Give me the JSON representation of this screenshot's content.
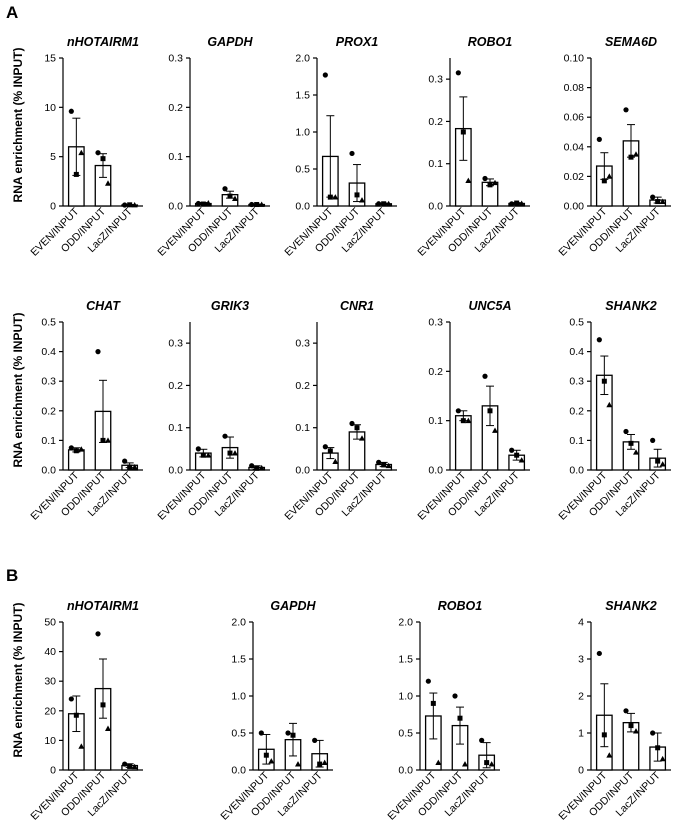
{
  "panels": [
    {
      "letter": "A"
    },
    {
      "letter": "B"
    }
  ],
  "y_axis_label": "RNA enrichment (% INPUT)",
  "categories": [
    "EVEN/INPUT",
    "ODD/INPUT",
    "LacZ/INPUT"
  ],
  "chart_data": [
    {
      "type": "bar",
      "panel": "A",
      "title": "nHOTAIRM1",
      "categories": [
        "EVEN/INPUT",
        "ODD/INPUT",
        "LacZ/INPUT"
      ],
      "values": [
        6.0,
        4.1,
        0.1
      ],
      "errors": [
        2.9,
        1.2,
        0.05
      ],
      "ylim": [
        0,
        15
      ],
      "yticks": [
        0,
        5,
        10,
        15
      ],
      "tick_labels": [
        "0",
        "5",
        "10",
        "15"
      ],
      "points": [
        [
          9.6,
          3.2,
          5.4
        ],
        [
          5.4,
          4.8,
          2.3
        ],
        [
          0.1,
          0.12,
          0.1
        ]
      ]
    },
    {
      "type": "bar",
      "panel": "A",
      "title": "GAPDH",
      "categories": [
        "EVEN/INPUT",
        "ODD/INPUT",
        "LacZ/INPUT"
      ],
      "values": [
        0.005,
        0.023,
        0.003
      ],
      "errors": [
        0.002,
        0.007,
        0.001
      ],
      "ylim": [
        0,
        0.3
      ],
      "yticks": [
        0,
        0.1,
        0.2,
        0.3
      ],
      "tick_labels": [
        "0.0",
        "0.1",
        "0.2",
        "0.3"
      ],
      "points": [
        [
          0.005,
          0.004,
          0.006
        ],
        [
          0.035,
          0.02,
          0.015
        ],
        [
          0.003,
          0.003,
          0.003
        ]
      ]
    },
    {
      "type": "bar",
      "panel": "A",
      "title": "PROX1",
      "categories": [
        "EVEN/INPUT",
        "ODD/INPUT",
        "LacZ/INPUT"
      ],
      "values": [
        0.67,
        0.31,
        0.03
      ],
      "errors": [
        0.55,
        0.25,
        0.01
      ],
      "ylim": [
        0,
        2.0
      ],
      "yticks": [
        0,
        0.5,
        1.0,
        1.5,
        2.0
      ],
      "tick_labels": [
        "0.0",
        "0.5",
        "1.0",
        "1.5",
        "2.0"
      ],
      "points": [
        [
          1.77,
          0.12,
          0.12
        ],
        [
          0.71,
          0.15,
          0.08
        ],
        [
          0.03,
          0.03,
          0.03
        ]
      ]
    },
    {
      "type": "bar",
      "panel": "A",
      "title": "ROBO1",
      "categories": [
        "EVEN/INPUT",
        "ODD/INPUT",
        "LacZ/INPUT"
      ],
      "values": [
        0.183,
        0.056,
        0.006
      ],
      "errors": [
        0.075,
        0.008,
        0.002
      ],
      "ylim": [
        0,
        0.35
      ],
      "yticks": [
        0,
        0.1,
        0.2,
        0.3
      ],
      "tick_labels": [
        "0.0",
        "0.1",
        "0.2",
        "0.3"
      ],
      "points": [
        [
          0.315,
          0.175,
          0.06
        ],
        [
          0.065,
          0.05,
          0.055
        ],
        [
          0.005,
          0.007,
          0.006
        ]
      ]
    },
    {
      "type": "bar",
      "panel": "A",
      "title": "SEMA6D",
      "categories": [
        "EVEN/INPUT",
        "ODD/INPUT",
        "LacZ/INPUT"
      ],
      "values": [
        0.027,
        0.044,
        0.004
      ],
      "errors": [
        0.009,
        0.011,
        0.002
      ],
      "ylim": [
        0,
        0.1
      ],
      "yticks": [
        0,
        0.02,
        0.04,
        0.06,
        0.08,
        0.1
      ],
      "tick_labels": [
        "0.00",
        "0.02",
        "0.04",
        "0.06",
        "0.08",
        "0.10"
      ],
      "points": [
        [
          0.045,
          0.017,
          0.02
        ],
        [
          0.065,
          0.033,
          0.035
        ],
        [
          0.006,
          0.003,
          0.003
        ]
      ]
    },
    {
      "type": "bar",
      "panel": "A",
      "title": "CHAT",
      "categories": [
        "EVEN/INPUT",
        "ODD/INPUT",
        "LacZ/INPUT"
      ],
      "values": [
        0.068,
        0.198,
        0.016
      ],
      "errors": [
        0.007,
        0.105,
        0.008
      ],
      "ylim": [
        0,
        0.5
      ],
      "yticks": [
        0,
        0.1,
        0.2,
        0.3,
        0.4,
        0.5
      ],
      "tick_labels": [
        "0.0",
        "0.1",
        "0.2",
        "0.3",
        "0.4",
        "0.5"
      ],
      "points": [
        [
          0.075,
          0.065,
          0.07
        ],
        [
          0.4,
          0.1,
          0.1
        ],
        [
          0.03,
          0.01,
          0.01
        ]
      ]
    },
    {
      "type": "bar",
      "panel": "A",
      "title": "GRIK3",
      "categories": [
        "EVEN/INPUT",
        "ODD/INPUT",
        "LacZ/INPUT"
      ],
      "values": [
        0.04,
        0.053,
        0.006
      ],
      "errors": [
        0.009,
        0.025,
        0.004
      ],
      "ylim": [
        0,
        0.35
      ],
      "yticks": [
        0,
        0.1,
        0.2,
        0.3
      ],
      "tick_labels": [
        "0.0",
        "0.1",
        "0.2",
        "0.3"
      ],
      "points": [
        [
          0.05,
          0.035,
          0.035
        ],
        [
          0.08,
          0.04,
          0.04
        ],
        [
          0.01,
          0.004,
          0.005
        ]
      ]
    },
    {
      "type": "bar",
      "panel": "A",
      "title": "CNR1",
      "categories": [
        "EVEN/INPUT",
        "ODD/INPUT",
        "LacZ/INPUT"
      ],
      "values": [
        0.04,
        0.09,
        0.013
      ],
      "errors": [
        0.013,
        0.017,
        0.005
      ],
      "ylim": [
        0,
        0.35
      ],
      "yticks": [
        0,
        0.1,
        0.2,
        0.3
      ],
      "tick_labels": [
        "0.0",
        "0.1",
        "0.2",
        "0.3"
      ],
      "points": [
        [
          0.055,
          0.045,
          0.02
        ],
        [
          0.11,
          0.1,
          0.075
        ],
        [
          0.018,
          0.012,
          0.01
        ]
      ]
    },
    {
      "type": "bar",
      "panel": "A",
      "title": "UNC5A",
      "categories": [
        "EVEN/INPUT",
        "ODD/INPUT",
        "LacZ/INPUT"
      ],
      "values": [
        0.11,
        0.13,
        0.03
      ],
      "errors": [
        0.01,
        0.04,
        0.01
      ],
      "ylim": [
        0,
        0.3
      ],
      "yticks": [
        0,
        0.1,
        0.2,
        0.3
      ],
      "tick_labels": [
        "0.0",
        "0.1",
        "0.2",
        "0.3"
      ],
      "points": [
        [
          0.12,
          0.1,
          0.1
        ],
        [
          0.19,
          0.12,
          0.08
        ],
        [
          0.04,
          0.03,
          0.02
        ]
      ]
    },
    {
      "type": "bar",
      "panel": "A",
      "title": "SHANK2",
      "categories": [
        "EVEN/INPUT",
        "ODD/INPUT",
        "LacZ/INPUT"
      ],
      "values": [
        0.32,
        0.095,
        0.04
      ],
      "errors": [
        0.065,
        0.025,
        0.03
      ],
      "ylim": [
        0,
        0.5
      ],
      "yticks": [
        0,
        0.1,
        0.2,
        0.3,
        0.4,
        0.5
      ],
      "tick_labels": [
        "0.0",
        "0.1",
        "0.2",
        "0.3",
        "0.4",
        "0.5"
      ],
      "points": [
        [
          0.44,
          0.3,
          0.22
        ],
        [
          0.13,
          0.09,
          0.06
        ],
        [
          0.1,
          0.03,
          0.02
        ]
      ]
    },
    {
      "type": "bar",
      "panel": "B",
      "title": "nHOTAIRM1",
      "categories": [
        "EVEN/INPUT",
        "ODD/INPUT",
        "LacZ/INPUT"
      ],
      "values": [
        19,
        27.5,
        1.5
      ],
      "errors": [
        6,
        10,
        0.6
      ],
      "ylim": [
        0,
        50
      ],
      "yticks": [
        0,
        10,
        20,
        30,
        40,
        50
      ],
      "tick_labels": [
        "0",
        "10",
        "20",
        "30",
        "40",
        "50"
      ],
      "points": [
        [
          24,
          18.5,
          8
        ],
        [
          46,
          22,
          14
        ],
        [
          2,
          1.2,
          1.1
        ]
      ]
    },
    {
      "type": "bar",
      "panel": "B",
      "title": "GAPDH",
      "categories": [
        "EVEN/INPUT",
        "ODD/INPUT",
        "LacZ/INPUT"
      ],
      "values": [
        0.28,
        0.41,
        0.22
      ],
      "errors": [
        0.2,
        0.22,
        0.18
      ],
      "ylim": [
        0,
        2.0
      ],
      "yticks": [
        0,
        0.5,
        1.0,
        1.5,
        2.0
      ],
      "tick_labels": [
        "0.0",
        "0.5",
        "1.0",
        "1.5",
        "2.0"
      ],
      "points": [
        [
          0.5,
          0.2,
          0.12
        ],
        [
          0.5,
          0.47,
          0.08
        ],
        [
          0.4,
          0.08,
          0.1
        ]
      ]
    },
    {
      "type": "bar",
      "panel": "B",
      "title": "ROBO1",
      "categories": [
        "EVEN/INPUT",
        "ODD/INPUT",
        "LacZ/INPUT"
      ],
      "values": [
        0.73,
        0.6,
        0.2
      ],
      "errors": [
        0.31,
        0.25,
        0.17
      ],
      "ylim": [
        0,
        2.0
      ],
      "yticks": [
        0,
        0.5,
        1.0,
        1.5,
        2.0
      ],
      "tick_labels": [
        "0.0",
        "0.5",
        "1.0",
        "1.5",
        "2.0"
      ],
      "points": [
        [
          1.2,
          0.9,
          0.1
        ],
        [
          1.0,
          0.7,
          0.08
        ],
        [
          0.4,
          0.1,
          0.08
        ]
      ]
    },
    {
      "type": "bar",
      "panel": "B",
      "title": "SHANK2",
      "categories": [
        "EVEN/INPUT",
        "ODD/INPUT",
        "LacZ/INPUT"
      ],
      "values": [
        1.48,
        1.28,
        0.62
      ],
      "errors": [
        0.85,
        0.25,
        0.38
      ],
      "ylim": [
        0,
        4
      ],
      "yticks": [
        0,
        1,
        2,
        3,
        4
      ],
      "tick_labels": [
        "0",
        "1",
        "2",
        "3",
        "4"
      ],
      "points": [
        [
          3.15,
          0.95,
          0.4
        ],
        [
          1.6,
          1.2,
          1.05
        ],
        [
          1.0,
          0.6,
          0.3
        ]
      ]
    }
  ]
}
